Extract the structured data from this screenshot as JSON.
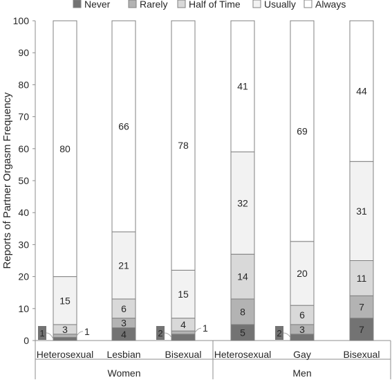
{
  "chart_data": {
    "type": "bar",
    "stacked": true,
    "ylabel": "Reports of Partner Orgasm Frequency",
    "ylim": [
      0,
      100
    ],
    "yticks": [
      "0",
      "10",
      "20",
      "30",
      "40",
      "50",
      "60",
      "70",
      "80",
      "90",
      "100"
    ],
    "categories": [
      "Heterosexual",
      "Lesbian",
      "Bisexual",
      "Heterosexual",
      "Gay",
      "Bisexual"
    ],
    "groups": [
      {
        "label": "Women",
        "members": [
          0,
          1,
          2
        ]
      },
      {
        "label": "Men",
        "members": [
          3,
          4,
          5
        ]
      }
    ],
    "legend_position": "top",
    "series": [
      {
        "name": "Never",
        "color": "#737373",
        "values": [
          1,
          4,
          2,
          5,
          2,
          7
        ],
        "labels": [
          "1",
          "4",
          "2",
          "5",
          "2",
          "7"
        ]
      },
      {
        "name": "Rarely",
        "color": "#b3b3b3",
        "values": [
          1,
          3,
          1,
          8,
          3,
          7
        ],
        "labels": [
          "1",
          "3",
          "1",
          "8",
          "3",
          "7"
        ]
      },
      {
        "name": "Half of Time",
        "color": "#d9d9d9",
        "values": [
          3,
          6,
          4,
          14,
          6,
          11
        ],
        "labels": [
          "3",
          "6",
          "4",
          "14",
          "6",
          "11"
        ]
      },
      {
        "name": "Usually",
        "color": "#f2f2f2",
        "values": [
          15,
          21,
          15,
          32,
          20,
          31
        ],
        "labels": [
          "15",
          "21",
          "15",
          "32",
          "20",
          "31"
        ]
      },
      {
        "name": "Always",
        "color": "#ffffff",
        "values": [
          80,
          66,
          78,
          41,
          69,
          44
        ],
        "labels": [
          "80",
          "66",
          "78",
          "41",
          "69",
          "44"
        ]
      }
    ]
  }
}
